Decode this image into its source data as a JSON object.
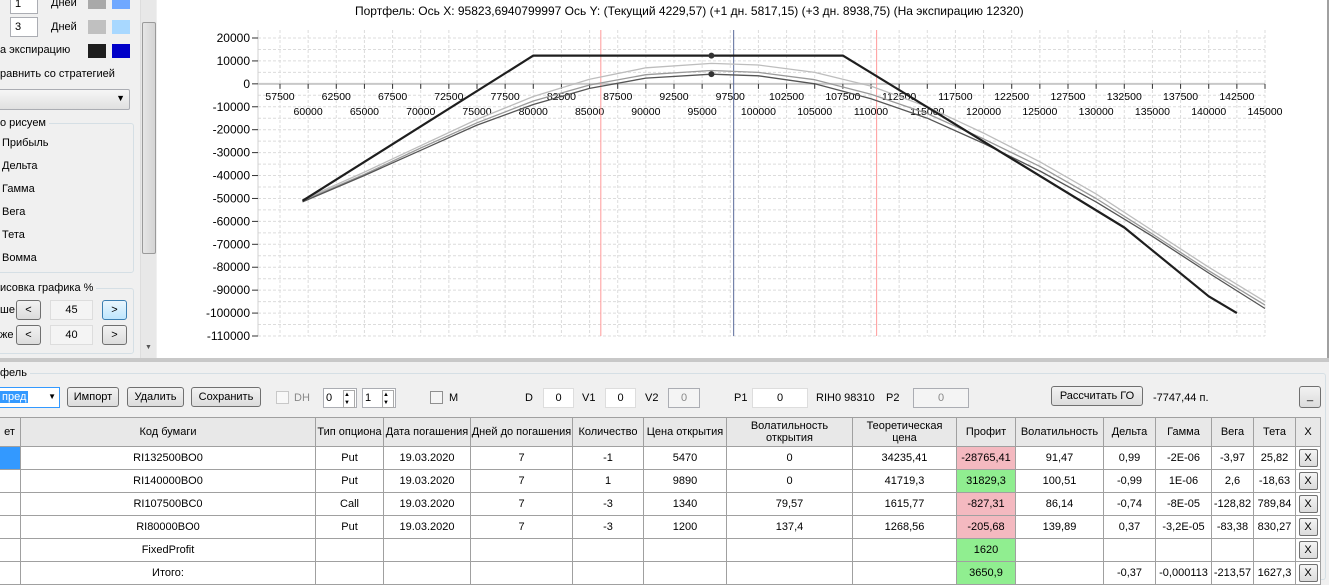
{
  "left_panel": {
    "day_rows": [
      {
        "value": "1",
        "label": "Дней",
        "colors": [
          "#a9a9a9",
          "#6fa8ff"
        ]
      },
      {
        "value": "3",
        "label": "Дней",
        "colors": [
          "#c0c0c0",
          "#a8d8ff"
        ]
      }
    ],
    "expiration_label": "а экспирацию",
    "expiration_colors": [
      "#1e1e1e",
      "#0000c8"
    ],
    "compare_label": "равнить со стратегией",
    "compare_select": "",
    "draw_group_title": "о рисуем",
    "draw_options": [
      "Прибыль",
      "Дельта",
      "Гамма",
      "Вега",
      "Тета",
      "Вомма"
    ],
    "range_group_title": "исовка графика %",
    "range_rows": [
      {
        "label": "ше",
        "value": "45"
      },
      {
        "label": "же",
        "value": "40"
      }
    ],
    "prev": "<",
    "next": ">"
  },
  "chart": {
    "title": "Портфель: Ось X: 95823,6940799997 Ось Y:  (Текущий 4229,57)  (+1 дн. 5817,15)  (+3 дн. 8938,75)  (На экспирацию 12320)"
  },
  "chart_data": {
    "type": "line",
    "xlim": [
      57500,
      145000
    ],
    "ylim": [
      -110000,
      20000
    ],
    "x_ticks_top": [
      57500,
      62500,
      67500,
      72500,
      77500,
      82500,
      87500,
      92500,
      97500,
      102500,
      107500,
      112500,
      117500,
      122500,
      127500,
      132500,
      137500,
      142500
    ],
    "x_ticks_bottom": [
      60000,
      65000,
      70000,
      75000,
      80000,
      85000,
      90000,
      95000,
      100000,
      105000,
      110000,
      115000,
      120000,
      125000,
      130000,
      135000,
      140000,
      145000
    ],
    "y_ticks": [
      20000,
      10000,
      0,
      -10000,
      -20000,
      -30000,
      -40000,
      -50000,
      -60000,
      -70000,
      -80000,
      -90000,
      -100000,
      -110000
    ],
    "grid": true,
    "cursor_x": 95823.69,
    "markers": [
      {
        "x": 95823.69,
        "y": 12320
      },
      {
        "x": 95823.69,
        "y": 4229.57
      }
    ],
    "vertical_lines": [
      {
        "x": 86000,
        "color": "#ff9999"
      },
      {
        "x": 97800,
        "color": "#5a6a9a"
      },
      {
        "x": 110500,
        "color": "#ff9999"
      }
    ],
    "series": [
      {
        "color": "#bdbdbd",
        "points": [
          [
            59500,
            -50500
          ],
          [
            65000,
            -38500
          ],
          [
            70000,
            -27000
          ],
          [
            75000,
            -15500
          ],
          [
            80000,
            -5500
          ],
          [
            85000,
            2000
          ],
          [
            90000,
            7000
          ],
          [
            95823,
            8938
          ],
          [
            100000,
            8200
          ],
          [
            105000,
            5000
          ],
          [
            110000,
            -1000
          ],
          [
            115000,
            -10000
          ],
          [
            120000,
            -21500
          ],
          [
            125000,
            -34000
          ],
          [
            130000,
            -48000
          ],
          [
            135000,
            -64000
          ],
          [
            140000,
            -80000
          ],
          [
            145000,
            -95000
          ]
        ]
      },
      {
        "color": "#9a9a9a",
        "points": [
          [
            59500,
            -51000
          ],
          [
            65000,
            -39500
          ],
          [
            70000,
            -28000
          ],
          [
            75000,
            -17000
          ],
          [
            80000,
            -7500
          ],
          [
            85000,
            -500
          ],
          [
            90000,
            4000
          ],
          [
            95823,
            5817
          ],
          [
            100000,
            5000
          ],
          [
            105000,
            1800
          ],
          [
            110000,
            -4500
          ],
          [
            115000,
            -13000
          ],
          [
            120000,
            -24000
          ],
          [
            125000,
            -36000
          ],
          [
            130000,
            -50000
          ],
          [
            135000,
            -65500
          ],
          [
            140000,
            -81500
          ],
          [
            145000,
            -96500
          ]
        ]
      },
      {
        "color": "#555555",
        "points": [
          [
            59500,
            -51500
          ],
          [
            65000,
            -40000
          ],
          [
            70000,
            -29000
          ],
          [
            75000,
            -18000
          ],
          [
            80000,
            -9000
          ],
          [
            85000,
            -2000
          ],
          [
            90000,
            2500
          ],
          [
            95823,
            4229
          ],
          [
            100000,
            3500
          ],
          [
            105000,
            0
          ],
          [
            110000,
            -6500
          ],
          [
            115000,
            -15000
          ],
          [
            120000,
            -26000
          ],
          [
            125000,
            -38000
          ],
          [
            130000,
            -51500
          ],
          [
            135000,
            -66500
          ],
          [
            140000,
            -82500
          ],
          [
            145000,
            -98000
          ]
        ]
      },
      {
        "color": "#1e1e1e",
        "points": [
          [
            59500,
            -51000
          ],
          [
            80000,
            12320
          ],
          [
            107500,
            12320
          ],
          [
            132500,
            -62680
          ],
          [
            140000,
            -92680
          ],
          [
            142500,
            -100000
          ]
        ]
      }
    ]
  },
  "portfolio": {
    "group_title": "фель",
    "strategy_select": "пред",
    "import": "Импорт",
    "delete": "Удалить",
    "save": "Сохранить",
    "dh_label": "DH",
    "spin1": "0",
    "spin2": "1",
    "m_label": "M",
    "d_label": "D",
    "d_value": "0",
    "v1_label": "V1",
    "v1_value": "0",
    "v2_label": "V2",
    "v2_value": "0",
    "p1_label": "P1",
    "p1_value": "0",
    "ticker": "RIH0 98310",
    "p2_label": "P2",
    "p2_value": "0",
    "calc_go": "Рассчитать ГО",
    "go_value": "-7747,44 п.",
    "minimize": "_"
  },
  "table": {
    "headers": [
      "ет",
      "Код бумаги",
      "Тип опциона",
      "Дата погашения",
      "Дней до погашения",
      "Количество",
      "Цена открытия",
      "Волатильность открытия",
      "Теоретическая цена",
      "Профит",
      "Волатильность",
      "Дельта",
      "Гамма",
      "Вега",
      "Тета",
      "X"
    ],
    "rows": [
      [
        "",
        "RI132500BO0",
        "Put",
        "19.03.2020",
        "7",
        "-1",
        "5470",
        "0",
        "34235,41",
        "-28765,41",
        "91,47",
        "0,99",
        "-2E-06",
        "-3,97",
        "25,82",
        "X"
      ],
      [
        "",
        "RI140000BO0",
        "Put",
        "19.03.2020",
        "7",
        "1",
        "9890",
        "0",
        "41719,3",
        "31829,3",
        "100,51",
        "-0,99",
        "1E-06",
        "2,6",
        "-18,63",
        "X"
      ],
      [
        "",
        "RI107500BC0",
        "Call",
        "19.03.2020",
        "7",
        "-3",
        "1340",
        "79,57",
        "1615,77",
        "-827,31",
        "86,14",
        "-0,74",
        "-8E-05",
        "-128,82",
        "789,84",
        "X"
      ],
      [
        "",
        "RI80000BO0",
        "Put",
        "19.03.2020",
        "7",
        "-3",
        "1200",
        "137,4",
        "1268,56",
        "-205,68",
        "139,89",
        "0,37",
        "-3,2E-05",
        "-83,38",
        "830,27",
        "X"
      ],
      [
        "",
        "FixedProfit",
        "",
        "",
        "",
        "",
        "",
        "",
        "",
        "1620",
        "",
        "",
        "",
        "",
        "",
        "X"
      ],
      [
        "",
        "Итого:",
        "",
        "",
        "",
        "",
        "",
        "",
        "",
        "3650,9",
        "",
        "-0,37",
        "-0,000113",
        "-213,57",
        "1627,3",
        "X"
      ]
    ],
    "profit_colors": [
      "red",
      "green",
      "red",
      "red",
      "green",
      "green"
    ]
  }
}
